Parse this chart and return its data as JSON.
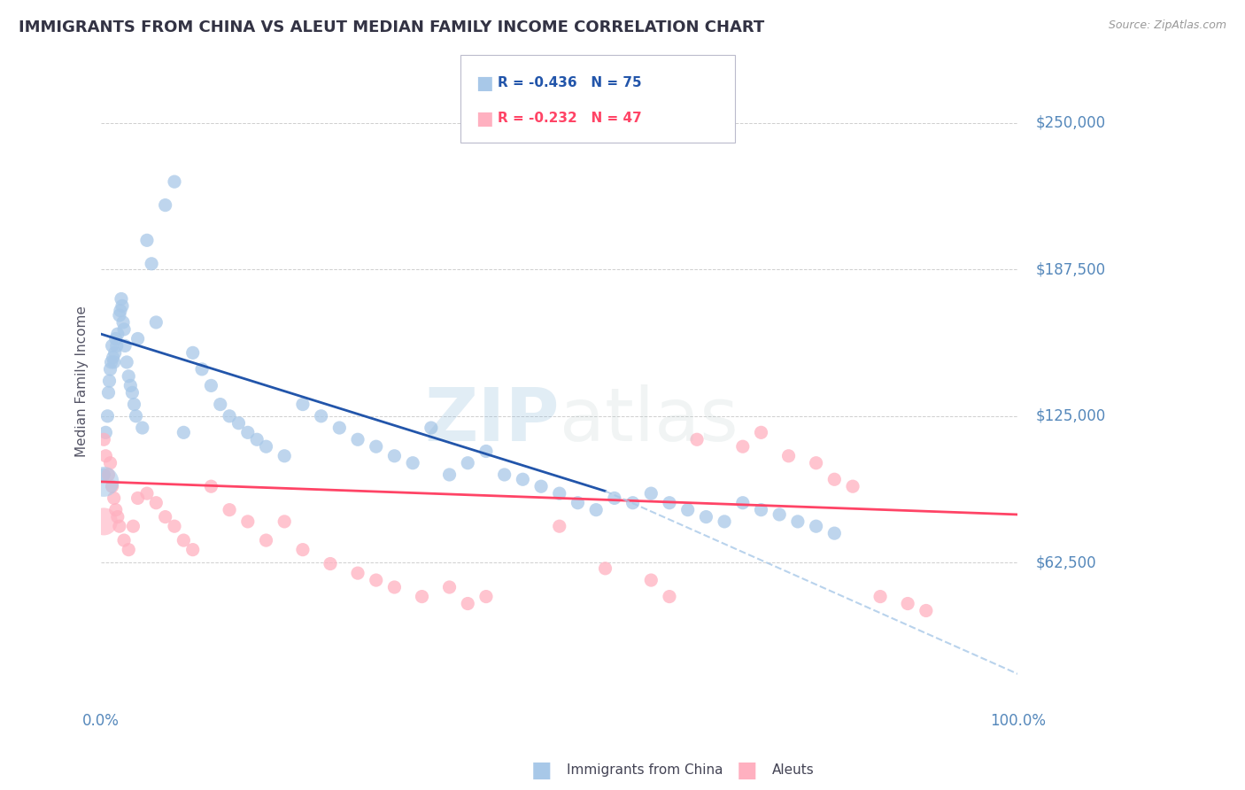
{
  "title": "IMMIGRANTS FROM CHINA VS ALEUT MEDIAN FAMILY INCOME CORRELATION CHART",
  "source_text": "Source: ZipAtlas.com",
  "ylabel": "Median Family Income",
  "ylim": [
    0,
    280000
  ],
  "xlim": [
    0.0,
    100.0
  ],
  "legend1_text": "R = -0.436   N = 75",
  "legend2_text": "R = -0.232   N = 47",
  "legend_label1": "Immigrants from China",
  "legend_label2": "Aleuts",
  "blue_color": "#A8C8E8",
  "pink_color": "#FFB0C0",
  "trend_blue": "#2255AA",
  "trend_pink": "#FF4466",
  "background_color": "#FFFFFF",
  "grid_color": "#BBBBBB",
  "title_color": "#333344",
  "axis_label_color": "#5588BB",
  "source_color": "#999999",
  "blue_scatter_x": [
    0.3,
    0.5,
    0.7,
    0.8,
    0.9,
    1.0,
    1.1,
    1.2,
    1.3,
    1.4,
    1.5,
    1.6,
    1.7,
    1.8,
    2.0,
    2.1,
    2.2,
    2.3,
    2.4,
    2.5,
    2.6,
    2.8,
    3.0,
    3.2,
    3.4,
    3.6,
    3.8,
    4.0,
    4.5,
    5.0,
    5.5,
    6.0,
    7.0,
    8.0,
    9.0,
    10.0,
    11.0,
    12.0,
    13.0,
    14.0,
    15.0,
    16.0,
    17.0,
    18.0,
    20.0,
    22.0,
    24.0,
    26.0,
    28.0,
    30.0,
    32.0,
    34.0,
    36.0,
    38.0,
    40.0,
    42.0,
    44.0,
    46.0,
    48.0,
    50.0,
    52.0,
    54.0,
    56.0,
    58.0,
    60.0,
    62.0,
    64.0,
    66.0,
    68.0,
    70.0,
    72.0,
    74.0,
    76.0,
    78.0,
    80.0
  ],
  "blue_scatter_y": [
    100000,
    118000,
    125000,
    135000,
    140000,
    145000,
    148000,
    155000,
    150000,
    148000,
    152000,
    158000,
    155000,
    160000,
    168000,
    170000,
    175000,
    172000,
    165000,
    162000,
    155000,
    148000,
    142000,
    138000,
    135000,
    130000,
    125000,
    158000,
    120000,
    200000,
    190000,
    165000,
    215000,
    225000,
    118000,
    152000,
    145000,
    138000,
    130000,
    125000,
    122000,
    118000,
    115000,
    112000,
    108000,
    130000,
    125000,
    120000,
    115000,
    112000,
    108000,
    105000,
    120000,
    100000,
    105000,
    110000,
    100000,
    98000,
    95000,
    92000,
    88000,
    85000,
    90000,
    88000,
    92000,
    88000,
    85000,
    82000,
    80000,
    88000,
    85000,
    83000,
    80000,
    78000,
    75000
  ],
  "pink_scatter_x": [
    0.3,
    0.5,
    0.8,
    1.0,
    1.2,
    1.4,
    1.6,
    1.8,
    2.0,
    2.5,
    3.0,
    3.5,
    4.0,
    5.0,
    6.0,
    7.0,
    8.0,
    9.0,
    10.0,
    12.0,
    14.0,
    16.0,
    18.0,
    20.0,
    22.0,
    25.0,
    28.0,
    30.0,
    32.0,
    35.0,
    38.0,
    40.0,
    42.0,
    50.0,
    55.0,
    60.0,
    62.0,
    65.0,
    70.0,
    72.0,
    75.0,
    78.0,
    80.0,
    82.0,
    85.0,
    88.0,
    90.0
  ],
  "pink_scatter_y": [
    115000,
    108000,
    100000,
    105000,
    95000,
    90000,
    85000,
    82000,
    78000,
    72000,
    68000,
    78000,
    90000,
    92000,
    88000,
    82000,
    78000,
    72000,
    68000,
    95000,
    85000,
    80000,
    72000,
    80000,
    68000,
    62000,
    58000,
    55000,
    52000,
    48000,
    52000,
    45000,
    48000,
    78000,
    60000,
    55000,
    48000,
    115000,
    112000,
    118000,
    108000,
    105000,
    98000,
    95000,
    48000,
    45000,
    42000
  ],
  "blue_line_x0": 0.0,
  "blue_line_y0": 160000,
  "blue_line_x1": 55.0,
  "blue_line_y1": 93000,
  "pink_line_x0": 0.0,
  "pink_line_y0": 97000,
  "pink_line_x1": 100.0,
  "pink_line_y1": 83000,
  "dashed_line_x0": 55.0,
  "dashed_line_y0": 93000,
  "dashed_line_x1": 100.0,
  "dashed_line_y1": 15000,
  "ytick_vals": [
    62500,
    125000,
    187500,
    250000
  ],
  "ytick_labels": [
    "$62,500",
    "$125,000",
    "$187,500",
    "$250,000"
  ]
}
